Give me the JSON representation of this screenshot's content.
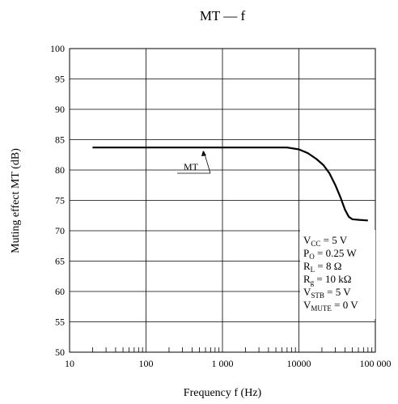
{
  "chart_data": {
    "type": "line",
    "title": "MT — f",
    "xlabel": "Frequency  f  (Hz)",
    "ylabel": "Muting effect  MT  (dB)",
    "x_scale": "log",
    "xlim": [
      10,
      100000
    ],
    "ylim": [
      50,
      100
    ],
    "x_ticks": [
      10,
      100,
      1000,
      10000,
      100000
    ],
    "x_tick_labels": [
      "10",
      "100",
      "1 000",
      "10000",
      "100 000"
    ],
    "y_ticks": [
      50,
      55,
      60,
      65,
      70,
      75,
      80,
      85,
      90,
      95,
      100
    ],
    "y_tick_labels": [
      "50",
      "55",
      "60",
      "65",
      "70",
      "75",
      "80",
      "85",
      "90",
      "95",
      "100"
    ],
    "grid": true,
    "series": [
      {
        "name": "MT",
        "x": [
          20,
          100,
          1000,
          5000,
          7000,
          10000,
          13000,
          17000,
          21000,
          25000,
          30000,
          35000,
          40000,
          45000,
          50000,
          60000,
          80000
        ],
        "y": [
          83.7,
          83.7,
          83.7,
          83.7,
          83.7,
          83.4,
          82.8,
          81.8,
          80.8,
          79.5,
          77.5,
          75.5,
          73.5,
          72.3,
          71.9,
          71.8,
          71.7
        ]
      }
    ],
    "annotations": {
      "series_label": "MT",
      "conditions": [
        {
          "main": "V",
          "sub": "CC",
          "rest": " = 5 V"
        },
        {
          "main": "P",
          "sub": "O",
          "rest": " = 0.25 W"
        },
        {
          "main": "R",
          "sub": "L",
          "rest": " = 8 Ω"
        },
        {
          "main": "R",
          "sub": "g",
          "rest": " = 10 kΩ"
        },
        {
          "main": "V",
          "sub": "STB",
          "rest": " = 5 V"
        },
        {
          "main": "V",
          "sub": "MUTE",
          "rest": " = 0 V"
        }
      ]
    }
  }
}
